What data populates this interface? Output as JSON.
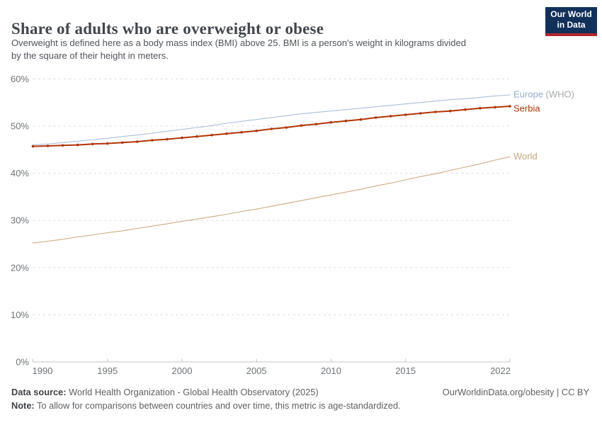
{
  "header": {
    "title": "Share of adults who are overweight or obese",
    "subtitle_line1": "Overweight is defined here as a body mass index (BMI) above 25. BMI is a person's weight in kilograms divided",
    "subtitle_line2": "by the square of their height in meters.",
    "logo_line1": "Our World",
    "logo_line2": "in Data"
  },
  "footer": {
    "datasource_label": "Data source:",
    "datasource_text": " World Health Organization - Global Health Observatory (2025)",
    "note_label": "Note:",
    "note_text": " To allow for comparisons between countries and over time, this metric is age-standardized.",
    "credit": "OurWorldinData.org/obesity | CC BY"
  },
  "colors": {
    "logo_bg": "#12315a",
    "logo_stripe": "#b2262c",
    "grid": "#dcdcdc",
    "axis": "#c6c6c6",
    "tick_text": "#6f7377"
  },
  "chart_data": {
    "type": "line",
    "title": "Share of adults who are overweight or obese",
    "xlabel": "",
    "ylabel": "",
    "ylim": [
      0,
      62
    ],
    "x_range": [
      1990,
      2022
    ],
    "grid": "dashed-horizontal",
    "legend_position": "right-of-line-ends",
    "years": [
      1990,
      1991,
      1992,
      1993,
      1994,
      1995,
      1996,
      1997,
      1998,
      1999,
      2000,
      2001,
      2002,
      2003,
      2004,
      2005,
      2006,
      2007,
      2008,
      2009,
      2010,
      2011,
      2012,
      2013,
      2014,
      2015,
      2016,
      2017,
      2018,
      2019,
      2020,
      2021,
      2022
    ],
    "yticks": [
      0,
      10,
      20,
      30,
      40,
      50,
      60
    ],
    "ytick_labels": [
      "0%",
      "10%",
      "20%",
      "30%",
      "40%",
      "50%",
      "60%"
    ],
    "xtick_years": [
      1990,
      1995,
      2000,
      2005,
      2010,
      2015,
      2022
    ],
    "xtick_labels": [
      "1990",
      "1995",
      "2000",
      "2005",
      "2010",
      "2015",
      "2022"
    ],
    "series": [
      {
        "name": "Europe (WHO)",
        "label": "Europe",
        "label_suffix": " (WHO)",
        "line_color": "#aabfd9",
        "label_color": "#97abce",
        "suffix_color": "#a6aaae",
        "width": 1.1,
        "markers": false,
        "label_dy": -1,
        "values": [
          46.0,
          46.2,
          46.5,
          46.8,
          47.1,
          47.4,
          47.8,
          48.1,
          48.5,
          48.9,
          49.3,
          49.7,
          50.1,
          50.6,
          51.0,
          51.4,
          51.8,
          52.2,
          52.6,
          52.9,
          53.2,
          53.5,
          53.8,
          54.1,
          54.4,
          54.7,
          55.0,
          55.3,
          55.6,
          55.8,
          56.1,
          56.4,
          56.6
        ]
      },
      {
        "name": "World",
        "label": "World",
        "label_suffix": "",
        "line_color": "#cbac82",
        "label_color": "#c5a67c",
        "suffix_color": "#c5a67c",
        "width": 1.1,
        "markers": false,
        "label_dy": -1,
        "values": [
          25.2,
          25.6,
          26.0,
          26.5,
          26.9,
          27.4,
          27.8,
          28.3,
          28.8,
          29.3,
          29.8,
          30.3,
          30.8,
          31.3,
          31.9,
          32.4,
          33.0,
          33.6,
          34.2,
          34.8,
          35.4,
          36.0,
          36.6,
          37.3,
          37.9,
          38.6,
          39.3,
          39.9,
          40.6,
          41.3,
          42.0,
          42.8,
          43.5
        ]
      },
      {
        "name": "Serbia",
        "label": "Serbia",
        "label_suffix": "",
        "line_color": "#b13507",
        "label_color": "#b13507",
        "suffix_color": "#b13507",
        "width": 2,
        "markers": true,
        "label_dy": 3,
        "values": [
          45.7,
          45.8,
          45.9,
          46.0,
          46.2,
          46.3,
          46.5,
          46.7,
          47.0,
          47.2,
          47.5,
          47.8,
          48.1,
          48.4,
          48.7,
          49.0,
          49.4,
          49.7,
          50.1,
          50.4,
          50.8,
          51.1,
          51.4,
          51.8,
          52.1,
          52.4,
          52.7,
          53.0,
          53.2,
          53.5,
          53.8,
          54.0,
          54.2
        ]
      }
    ]
  }
}
